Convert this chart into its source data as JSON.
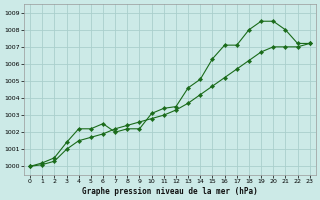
{
  "xlabel": "Graphe pression niveau de la mer (hPa)",
  "background_color": "#cceae7",
  "line_color": "#1a6b1a",
  "grid_color": "#aacfcc",
  "xlim": [
    -0.5,
    23.5
  ],
  "ylim": [
    999.5,
    1009.5
  ],
  "yticks": [
    1000,
    1001,
    1002,
    1003,
    1004,
    1005,
    1006,
    1007,
    1008,
    1009
  ],
  "xticks": [
    0,
    1,
    2,
    3,
    4,
    5,
    6,
    7,
    8,
    9,
    10,
    11,
    12,
    13,
    14,
    15,
    16,
    17,
    18,
    19,
    20,
    21,
    22,
    23
  ],
  "line1_x": [
    0,
    1,
    2,
    3,
    4,
    5,
    6,
    7,
    8,
    9,
    10,
    11,
    12,
    13,
    14,
    15,
    16,
    17,
    18,
    19,
    20,
    21,
    22,
    23
  ],
  "line1_y": [
    1000.0,
    1000.2,
    1000.5,
    1001.4,
    1002.2,
    1002.2,
    1002.5,
    1002.0,
    1002.2,
    1002.2,
    1003.1,
    1003.4,
    1003.5,
    1004.6,
    1005.1,
    1006.3,
    1007.1,
    1007.1,
    1008.0,
    1008.5,
    1008.5,
    1008.0,
    1007.2,
    1007.2
  ],
  "line2_x": [
    0,
    1,
    2,
    3,
    4,
    5,
    6,
    7,
    8,
    9,
    10,
    11,
    12,
    13,
    14,
    15,
    16,
    17,
    18,
    19,
    20,
    21,
    22,
    23
  ],
  "line2_y": [
    1000.0,
    1000.1,
    1000.3,
    1001.0,
    1001.5,
    1001.7,
    1001.9,
    1002.2,
    1002.4,
    1002.6,
    1002.8,
    1003.0,
    1003.3,
    1003.7,
    1004.2,
    1004.7,
    1005.2,
    1005.7,
    1006.2,
    1006.7,
    1007.0,
    1007.0,
    1007.0,
    1007.2
  ],
  "marker": "D",
  "markersize": 2.2,
  "linewidth": 0.8
}
